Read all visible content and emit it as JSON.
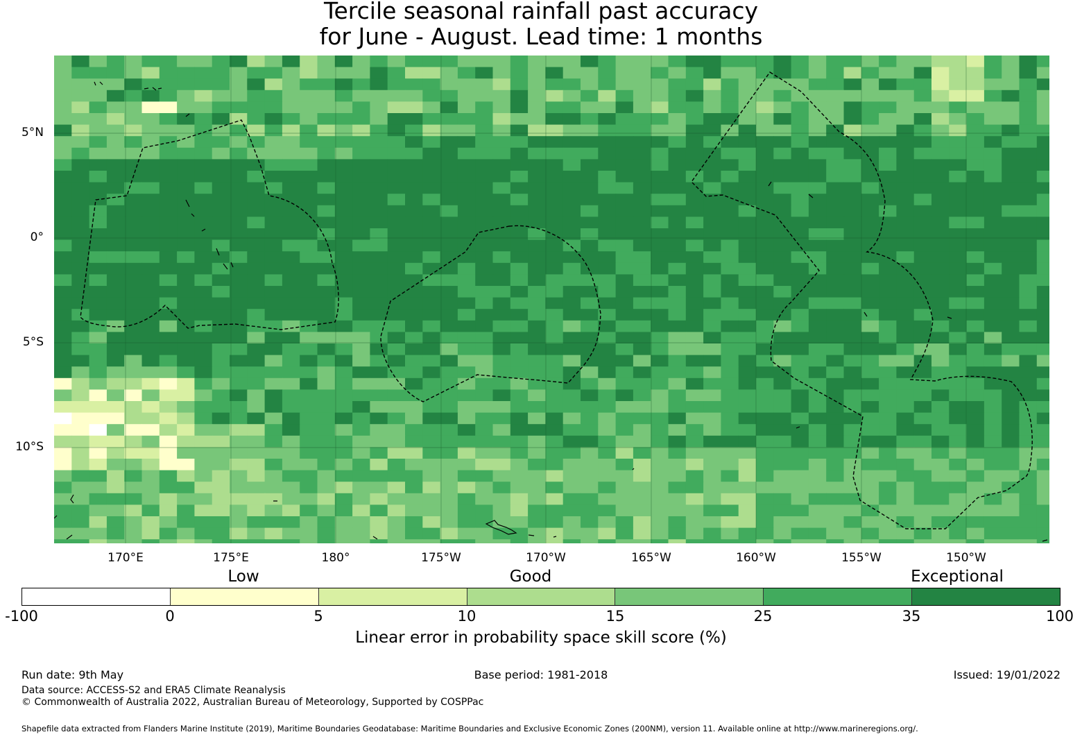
{
  "title": {
    "line1": "Tercile seasonal rainfall past accuracy",
    "line2": "for June - August. Lead time: 1 months"
  },
  "map": {
    "lat_labels": [
      "5°N",
      "0°",
      "5°S",
      "10°S"
    ],
    "lon_labels": [
      "170°E",
      "175°E",
      "180°",
      "175°W",
      "170°W",
      "165°W",
      "160°W",
      "155°W",
      "150°W"
    ],
    "palette": {
      "lt0": "#ffffff",
      "0_5": "#ffffcc",
      "5_10": "#d9f0a3",
      "10_15": "#addd8e",
      "15_25": "#78c679",
      "25_35": "#41ab5d",
      "35_100": "#238443"
    }
  },
  "legend": {
    "words": {
      "low": "Low",
      "good": "Good",
      "exceptional": "Exceptional"
    },
    "ticks": [
      "-100",
      "0",
      "5",
      "10",
      "15",
      "25",
      "35",
      "100"
    ],
    "colors": [
      "#ffffff",
      "#ffffcc",
      "#d9f0a3",
      "#addd8e",
      "#78c679",
      "#41ab5d",
      "#238443"
    ],
    "title": "Linear error in probability space skill score (%)"
  },
  "footer": {
    "run_date": "Run date: 9th May",
    "base_period": "Base period: 1981-2018",
    "issued": "Issued: 19/01/2022",
    "data_source": "Data source: ACCESS-S2 and ERA5 Climate Reanalysis",
    "copyright": "© Commonwealth of Australia 2022, Australian Bureau of Meteorology, Supported by COSPPac",
    "shapefile": "Shapefile data extracted from Flanders Marine Institute (2019), Maritime Boundaries Geodatabase: Maritime Boundaries and Exclusive Economic Zones (200NM), version 11. Available online at http://www.marineregions.org/."
  }
}
